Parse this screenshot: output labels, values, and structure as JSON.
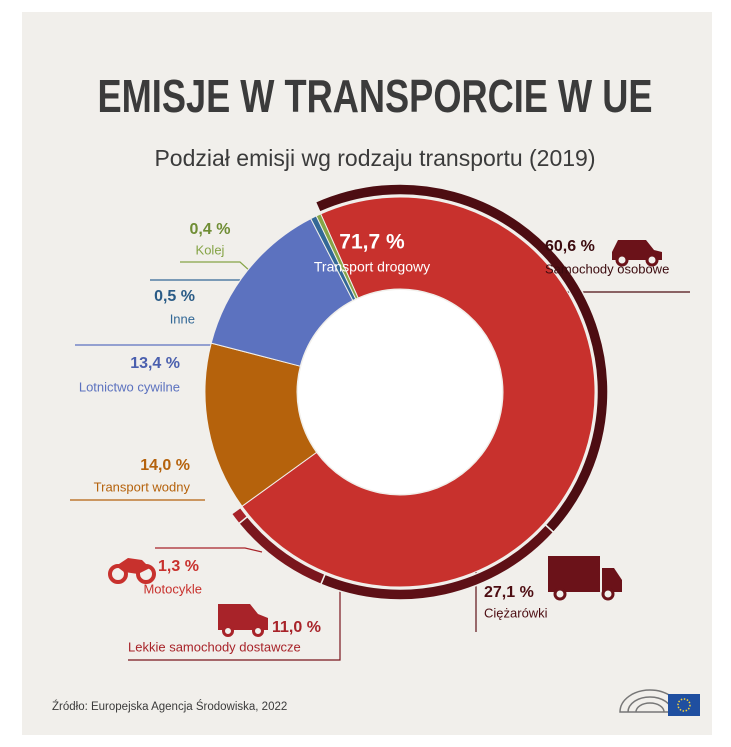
{
  "chart_data": {
    "type": "donut",
    "title": "EMISJE W TRANSPORCIE W UE",
    "subtitle": "Podział emisji wg rodzaju transportu (2019)",
    "source": "Źródło: Europejska Agencja Środowiska, 2022",
    "categories": [
      "Transport drogowy",
      "Transport wodny",
      "Lotnictwo cywilne",
      "Inne",
      "Kolej"
    ],
    "values": [
      71.7,
      14.0,
      13.4,
      0.5,
      0.4
    ],
    "value_labels": [
      "71,7 %",
      "14,0 %",
      "13,4 %",
      "0,5 %",
      "0,4 %"
    ],
    "colors": [
      "#c8312d",
      "#b5620c",
      "#5c72bf",
      "#336896",
      "#86a447"
    ],
    "breakdown": {
      "categories": [
        "Samochody osobowe",
        "Ciężarówki",
        "Lekkie samochody dostawcze",
        "Motocykle"
      ],
      "values": [
        60.6,
        27.1,
        11.0,
        1.3
      ],
      "value_labels": [
        "60,6 %",
        "27,1 %",
        "11,0 %",
        "1,3 %"
      ],
      "colors": [
        "#4d0d12",
        "#5e1016",
        "#7a161d",
        "#a82329"
      ]
    }
  }
}
